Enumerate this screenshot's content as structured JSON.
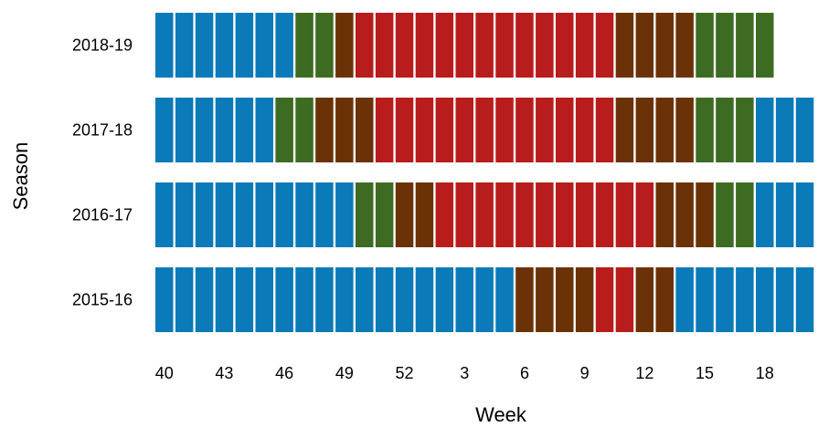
{
  "chart_data": {
    "type": "heatmap",
    "title": "",
    "xlabel": "Week",
    "ylabel": "Season",
    "x_ticks": [
      "40",
      "43",
      "46",
      "49",
      "52",
      "3",
      "6",
      "9",
      "12",
      "15",
      "18"
    ],
    "weeks": [
      40,
      41,
      42,
      43,
      44,
      45,
      46,
      47,
      48,
      49,
      50,
      51,
      52,
      1,
      2,
      3,
      4,
      5,
      6,
      7,
      8,
      9,
      10,
      11,
      12,
      13,
      14,
      15,
      16,
      17,
      18,
      19,
      20
    ],
    "colors": {
      "1": "#0a7ab8",
      "2": "#3d6b22",
      "3": "#6b3208",
      "4": "#b81c1c"
    },
    "legend": null,
    "series": [
      {
        "name": "2018-19",
        "levels": [
          1,
          1,
          1,
          1,
          1,
          1,
          1,
          2,
          2,
          3,
          4,
          4,
          4,
          4,
          4,
          4,
          4,
          4,
          4,
          4,
          4,
          4,
          4,
          3,
          3,
          3,
          3,
          2,
          2,
          2,
          2
        ]
      },
      {
        "name": "2017-18",
        "levels": [
          1,
          1,
          1,
          1,
          1,
          1,
          2,
          2,
          3,
          3,
          3,
          4,
          4,
          4,
          4,
          4,
          4,
          4,
          4,
          4,
          4,
          4,
          4,
          3,
          3,
          3,
          3,
          2,
          2,
          2,
          1,
          1,
          1
        ]
      },
      {
        "name": "2016-17",
        "levels": [
          1,
          1,
          1,
          1,
          1,
          1,
          1,
          1,
          1,
          1,
          2,
          2,
          3,
          3,
          4,
          4,
          4,
          4,
          4,
          4,
          4,
          4,
          4,
          4,
          4,
          3,
          3,
          3,
          2,
          2,
          1,
          1,
          1
        ]
      },
      {
        "name": "2015-16",
        "levels": [
          1,
          1,
          1,
          1,
          1,
          1,
          1,
          1,
          1,
          1,
          1,
          1,
          1,
          1,
          1,
          1,
          1,
          1,
          3,
          3,
          3,
          3,
          4,
          4,
          3,
          3,
          1,
          1,
          1,
          1,
          1,
          1,
          1
        ]
      }
    ]
  }
}
